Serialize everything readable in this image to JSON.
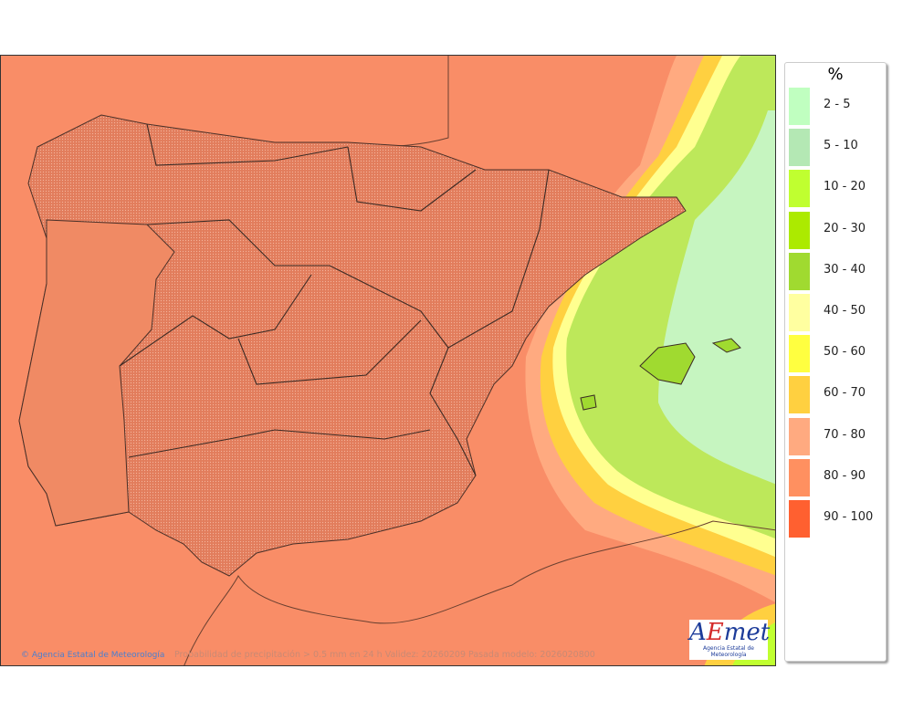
{
  "map": {
    "credit": "© Agencia Estatal de Meteorología",
    "caption": "Probabilidad de precipitación > 0.5 mm en 24 h Validez: 20260209 Pasada modelo: 2026020800",
    "logo_text": "AEMet",
    "logo_subtitle": "Agencia Estatal de Meteorología",
    "sea_color": "#f98d67",
    "land_color": "#e8825f"
  },
  "legend": {
    "unit": "%",
    "items": [
      {
        "label": "2 - 5",
        "color": "#c0ffc0"
      },
      {
        "label": "5 - 10",
        "color": "#b4e8b4"
      },
      {
        "label": "10 - 20",
        "color": "#c0ff30"
      },
      {
        "label": "20 - 30",
        "color": "#acea00"
      },
      {
        "label": "30 - 40",
        "color": "#a0da30"
      },
      {
        "label": "40 - 50",
        "color": "#ffffa0"
      },
      {
        "label": "50 - 60",
        "color": "#ffff40"
      },
      {
        "label": "60 - 70",
        "color": "#ffd040"
      },
      {
        "label": "70 - 80",
        "color": "#ffaa80"
      },
      {
        "label": "80 - 90",
        "color": "#ff9060"
      },
      {
        "label": "90 - 100",
        "color": "#ff6030"
      }
    ]
  }
}
